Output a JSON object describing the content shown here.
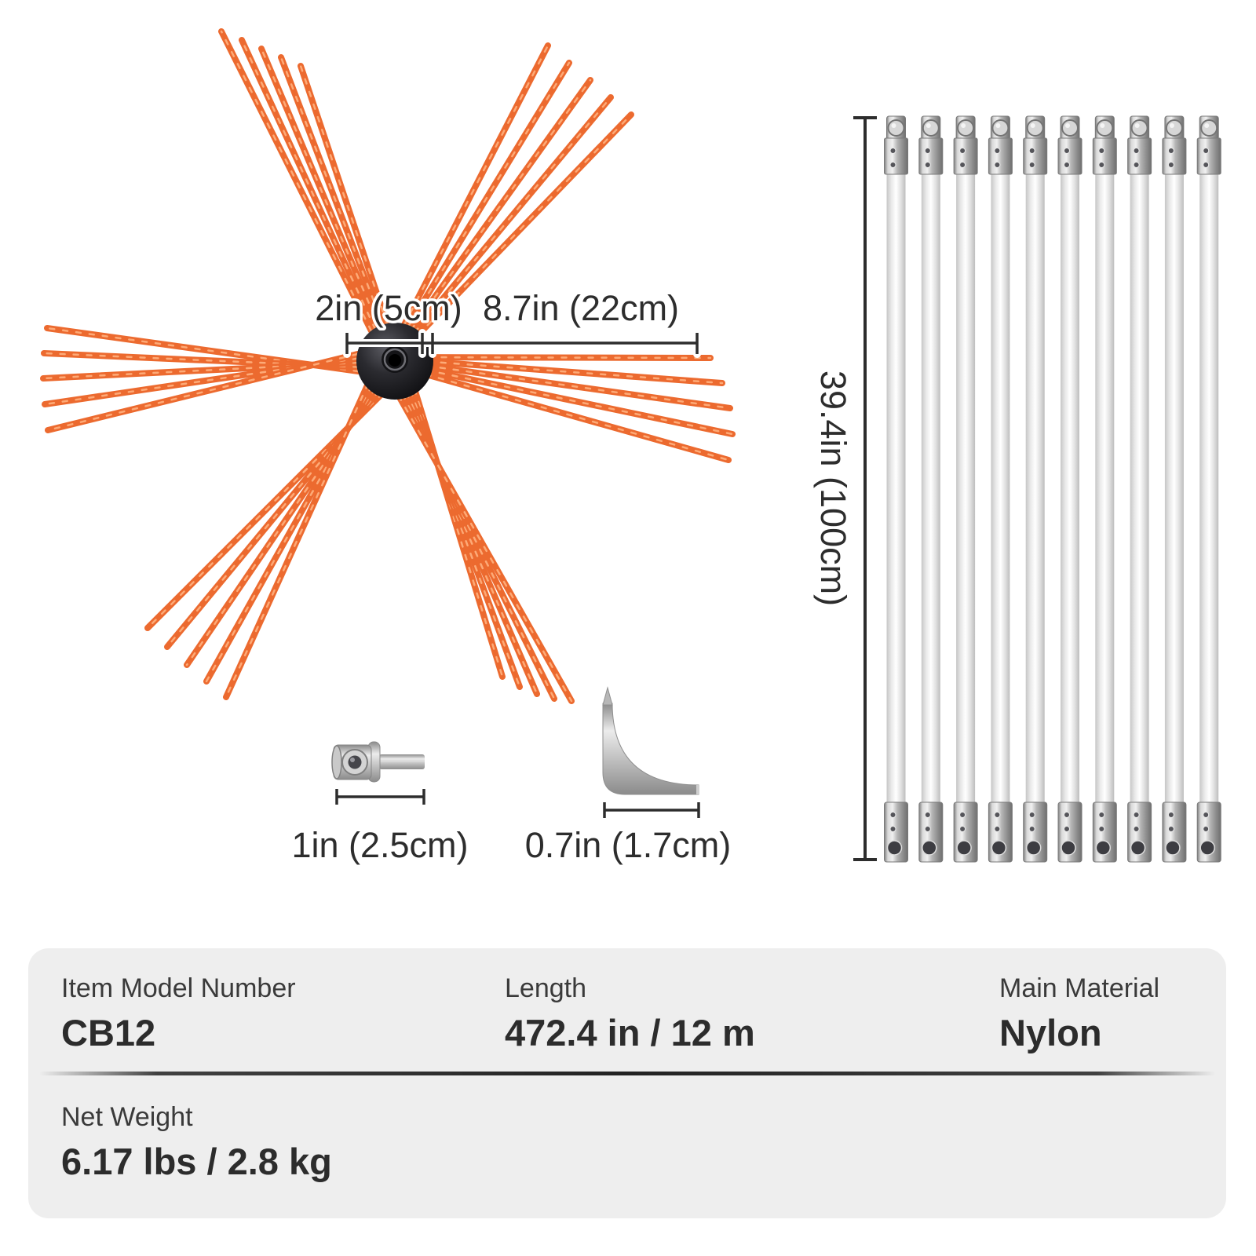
{
  "colors": {
    "bristle_orange": "#ec6a2f",
    "bristle_highlight": "#ffb27f",
    "hub_black": "#1b1b1f",
    "metal_gray": "#b9b9b9",
    "dimension_line": "#2d2d2d",
    "panel_bg": "#eeeeee",
    "text_dark": "#2c2c2c"
  },
  "diagram": {
    "brush_head": {
      "hub_width_label": "2in (5cm)",
      "bristle_length_label": "8.7in (22cm)",
      "arm_count": 6,
      "strands_per_arm": 5
    },
    "extension_rods": {
      "count": 10,
      "length_label": "39.4in (100cm)"
    },
    "drill_adapter": {
      "length_label": "1in (2.5cm)"
    },
    "hex_key": {
      "length_label": "0.7in (1.7cm)"
    }
  },
  "specs": {
    "row1": [
      {
        "label": "Item Model Number",
        "value": "CB12"
      },
      {
        "label": "Length",
        "value": "472.4 in / 12 m"
      },
      {
        "label": "Main Material",
        "value": "Nylon"
      }
    ],
    "row2": [
      {
        "label": "Net Weight",
        "value": "6.17 lbs / 2.8 kg"
      }
    ]
  }
}
